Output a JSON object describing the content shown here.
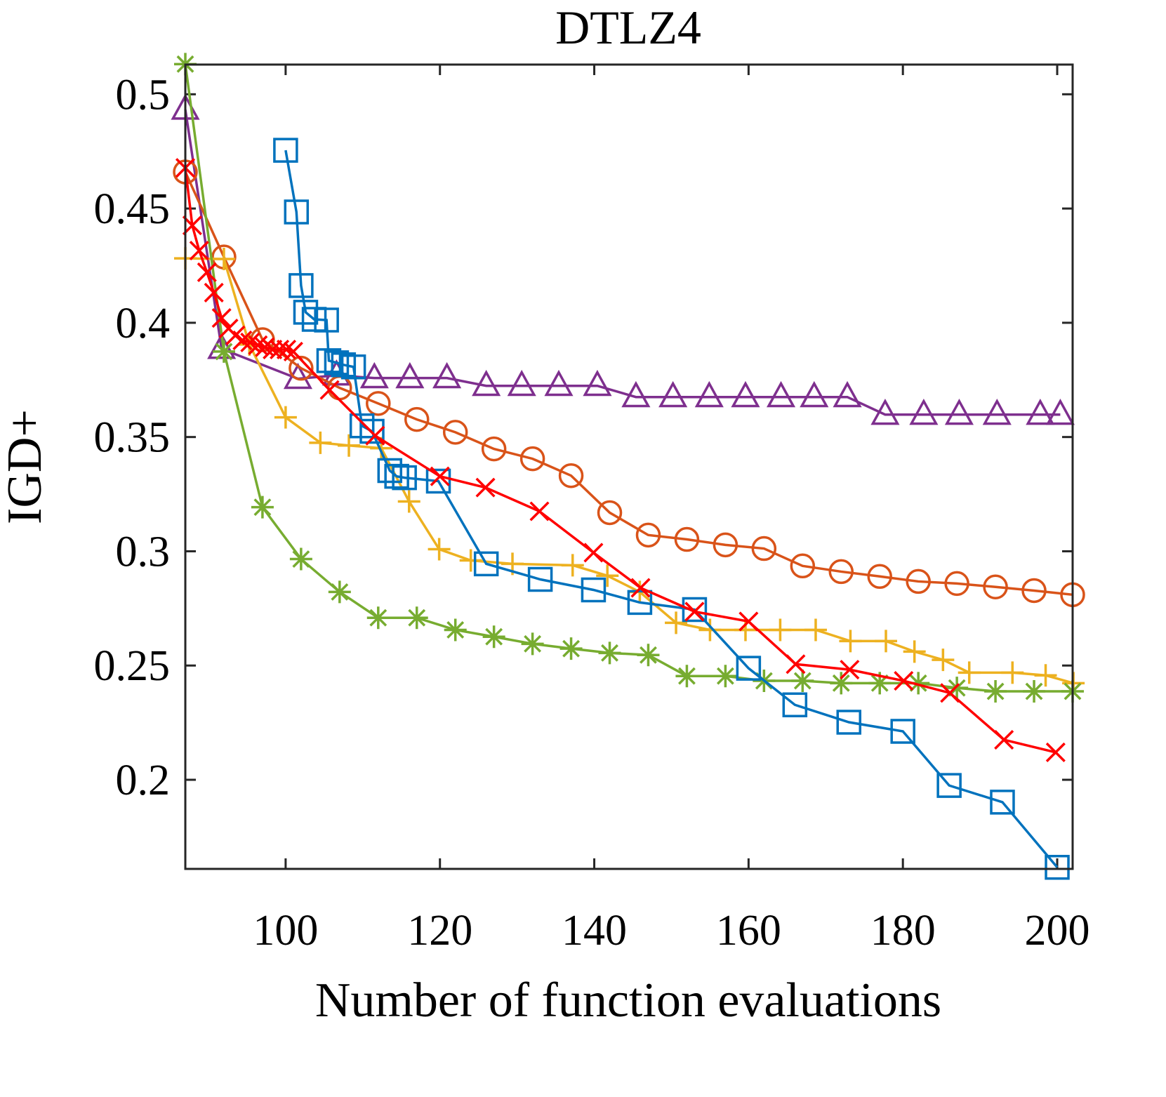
{
  "chart_data": {
    "type": "line",
    "title": "DTLZ4",
    "x_label": "Number of function evaluations",
    "y_label": "IGD+",
    "xlim": [
      87,
      202
    ],
    "ylim": [
      0.161,
      0.513
    ],
    "xticks": [
      100,
      120,
      140,
      160,
      180,
      200
    ],
    "yticks": [
      0.2,
      0.25,
      0.3,
      0.35,
      0.4,
      0.45,
      0.5
    ],
    "grid": false,
    "series": [
      {
        "color": "#7e2f8e",
        "marker": "triangle",
        "x": [
          87,
          91.7,
          101.6,
          106.6,
          111.5,
          116.1,
          120.9,
          126,
          130.6,
          135.4,
          140.4,
          145.4,
          150.2,
          154.9,
          159.6,
          164.2,
          168.5,
          172.8,
          177.7,
          182.7,
          187.3,
          192.2,
          197.8,
          200.4
        ],
        "values": [
          0.4933,
          0.3886,
          0.3755,
          0.377,
          0.3758,
          0.3758,
          0.3758,
          0.3724,
          0.3724,
          0.3724,
          0.3724,
          0.3675,
          0.3675,
          0.3675,
          0.3675,
          0.3675,
          0.3675,
          0.3675,
          0.3598,
          0.3598,
          0.3598,
          0.3598,
          0.3598,
          0.3598
        ]
      },
      {
        "color": "#d95319",
        "marker": "circle",
        "x": [
          87,
          92,
          97,
          102,
          107,
          112,
          117,
          122,
          127,
          132,
          137,
          142,
          147,
          152,
          157,
          162,
          167,
          172,
          177,
          182,
          187,
          192,
          197,
          202
        ],
        "values": [
          0.466,
          0.4288,
          0.3926,
          0.3801,
          0.3715,
          0.3647,
          0.3577,
          0.3521,
          0.3448,
          0.3405,
          0.3331,
          0.3169,
          0.3071,
          0.3052,
          0.3028,
          0.3012,
          0.2936,
          0.2911,
          0.289,
          0.2868,
          0.2859,
          0.2844,
          0.2828,
          0.281
        ]
      },
      {
        "color": "#edb120",
        "marker": "plus",
        "x": [
          87,
          92,
          95.3,
          100,
          104.5,
          108.2,
          112.4,
          116,
          119.9,
          124,
          129.4,
          137.2,
          141.7,
          145.9,
          150.6,
          155,
          159.6,
          164.1,
          168.7,
          173.2,
          177.8,
          181.5,
          185.2,
          188.6,
          194.2,
          198.5,
          202.1
        ],
        "values": [
          0.4282,
          0.4279,
          0.3905,
          0.3586,
          0.3475,
          0.3463,
          0.3451,
          0.3218,
          0.3009,
          0.296,
          0.2945,
          0.2939,
          0.2893,
          0.2822,
          0.2687,
          0.2656,
          0.2656,
          0.2656,
          0.2656,
          0.2607,
          0.2607,
          0.2561,
          0.2525,
          0.2469,
          0.2469,
          0.2457,
          0.2423
        ]
      },
      {
        "color": "#77ac30",
        "marker": "asterisk",
        "x": [
          87,
          92,
          97,
          102,
          107,
          112,
          117,
          122,
          127,
          132,
          137,
          142,
          147,
          152,
          157,
          162,
          167,
          172,
          177,
          182,
          187,
          192,
          197,
          202
        ],
        "values": [
          0.5132,
          0.3874,
          0.3193,
          0.2966,
          0.2822,
          0.2709,
          0.2709,
          0.2656,
          0.2626,
          0.2595,
          0.2574,
          0.2555,
          0.2546,
          0.2454,
          0.2454,
          0.2433,
          0.2433,
          0.2423,
          0.2423,
          0.2423,
          0.2402,
          0.2387,
          0.2387,
          0.2387
        ]
      },
      {
        "color": "#0072bd",
        "marker": "square",
        "x": [
          100,
          101.4,
          102,
          102.6,
          103.7,
          105.3,
          105.6,
          106.6,
          107.5,
          108.8,
          109.9,
          111.2,
          113.5,
          114.4,
          115.4,
          119.8,
          126,
          133,
          139.9,
          145.9,
          153,
          160,
          166,
          173,
          180,
          186,
          192.9,
          200
        ],
        "values": [
          0.4755,
          0.4485,
          0.4163,
          0.4046,
          0.4015,
          0.4012,
          0.3834,
          0.3825,
          0.3816,
          0.3807,
          0.3549,
          0.3525,
          0.3353,
          0.3328,
          0.3322,
          0.3307,
          0.2945,
          0.2877,
          0.2831,
          0.2776,
          0.2745,
          0.2488,
          0.2328,
          0.2252,
          0.2212,
          0.1975,
          0.1902,
          0.1617
        ]
      },
      {
        "color": "#ff0000",
        "marker": "x",
        "x": [
          87,
          87.9,
          88.8,
          89.8,
          90.7,
          91.7,
          92.6,
          93.5,
          94.4,
          95.4,
          96.4,
          97.3,
          98.3,
          99.2,
          100.1,
          101,
          105.7,
          111.6,
          120,
          125.9,
          132.9,
          139.9,
          146,
          153,
          160,
          166.1,
          173.1,
          180.1,
          186.1,
          193.1,
          199.8
        ],
        "values": [
          0.4678,
          0.4426,
          0.4316,
          0.4221,
          0.4132,
          0.4021,
          0.3975,
          0.3945,
          0.3923,
          0.3914,
          0.3902,
          0.3893,
          0.3883,
          0.3883,
          0.3883,
          0.3874,
          0.3706,
          0.3506,
          0.3328,
          0.3279,
          0.3175,
          0.2994,
          0.284,
          0.2736,
          0.2693,
          0.2506,
          0.2482,
          0.2433,
          0.238,
          0.2175,
          0.212
        ]
      }
    ]
  }
}
